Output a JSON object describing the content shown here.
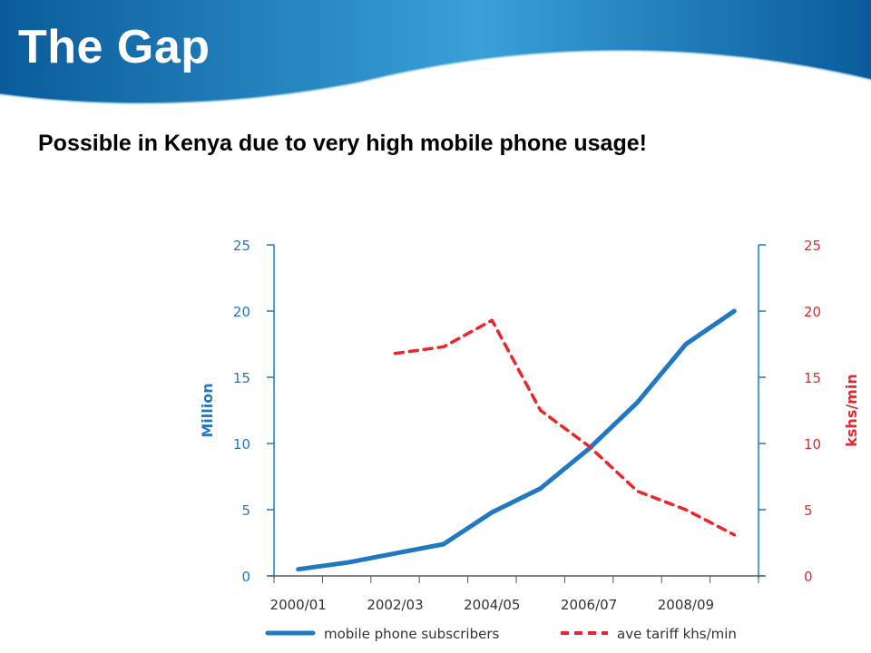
{
  "slide": {
    "title": "The Gap",
    "subtitle": "Possible in Kenya due to very high mobile phone usage!"
  },
  "colors": {
    "banner_dark": "#0a5b9c",
    "banner_light": "#3aa0d8",
    "subscribers": "#1f78c1",
    "tariff": "#e8262b"
  },
  "chart_data": {
    "type": "line",
    "categories": [
      "2000/01",
      "2001/02",
      "2002/03",
      "2003/04",
      "2004/05",
      "2005/06",
      "2006/07",
      "2007/08",
      "2008/09",
      "2009/10"
    ],
    "x_tick_labels": [
      "2000/01",
      "2002/03",
      "2004/05",
      "2006/07",
      "2008/09"
    ],
    "left_axis": {
      "label": "Million",
      "ylim": [
        0,
        25
      ],
      "ticks": [
        "0",
        "5",
        "10",
        "15",
        "20",
        "25"
      ],
      "tick_values": [
        0,
        5,
        10,
        15,
        20,
        25
      ]
    },
    "right_axis": {
      "label": "kshs/min",
      "ylim": [
        0,
        25
      ],
      "ticks": [
        "0",
        "5",
        "10",
        "15",
        "20",
        "25"
      ],
      "tick_values": [
        0,
        5,
        10,
        15,
        20,
        25
      ]
    },
    "series": [
      {
        "name": "mobile phone subscribers",
        "axis": "left",
        "style": "solid",
        "x": [
          0,
          1,
          2,
          3,
          4,
          5,
          6,
          7,
          8,
          9
        ],
        "values": [
          0.5,
          1.0,
          1.7,
          2.4,
          4.8,
          6.6,
          9.6,
          13.1,
          17.5,
          20.0
        ]
      },
      {
        "name": "ave tariff khs/min",
        "axis": "right",
        "style": "dashed",
        "x": [
          2,
          3,
          4,
          5,
          6,
          7,
          8,
          9
        ],
        "values": [
          16.8,
          17.3,
          19.3,
          12.5,
          9.8,
          6.4,
          5.0,
          3.1
        ]
      }
    ],
    "legend": "bottom",
    "grid": false
  }
}
